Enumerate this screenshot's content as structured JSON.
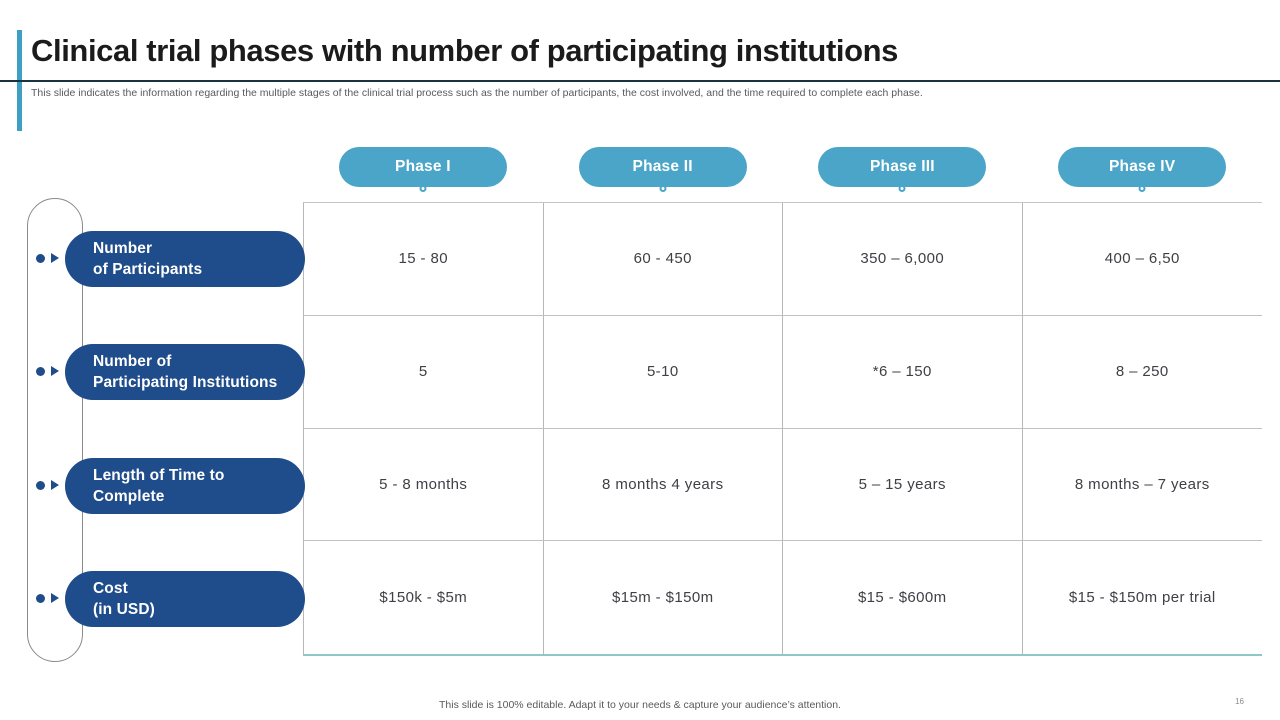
{
  "slide": {
    "title": "Clinical trial phases with number of participating institutions",
    "subtitle": "This slide indicates the information regarding the multiple stages of the clinical trial process such as the number of participants, the cost involved, and the time required to complete each phase.",
    "footer": "This slide is 100% editable. Adapt it to your needs & capture your audience’s attention.",
    "page_number": "16"
  },
  "colors": {
    "header_pill_blue": "#4BA5C9",
    "row_pill_blue": "#1F4C8A",
    "accent_bar_teal": "#3E9FC4",
    "grid_line_gray": "#B8B8B8",
    "grid_bottom_teal": "#8FC7C9",
    "cell_text": "#3F4045",
    "muted_text": "#5A5A5A",
    "title_text": "#1B1B1B"
  },
  "table": {
    "phases": [
      "Phase I",
      "Phase II",
      "Phase III",
      "Phase IV"
    ],
    "rows": [
      {
        "label": [
          "Number",
          "of Participants"
        ],
        "values": [
          "15 - 80",
          "60 - 450",
          "350 – 6,000",
          "400 – 6,50"
        ]
      },
      {
        "label": [
          "Number of",
          "Participating Institutions"
        ],
        "values": [
          "5",
          "5-10",
          "*6 – 150",
          "8 – 250"
        ]
      },
      {
        "label": [
          "Length of Time to",
          "Complete"
        ],
        "values": [
          "5 - 8 months",
          "8 months 4 years",
          "5 – 15 years",
          "8 months – 7 years"
        ]
      },
      {
        "label": [
          "Cost",
          "(in USD)"
        ],
        "values": [
          "$150k - $5m",
          "$15m - $150m",
          "$15 - $600m",
          "$15 - $150m per trial"
        ]
      }
    ]
  }
}
